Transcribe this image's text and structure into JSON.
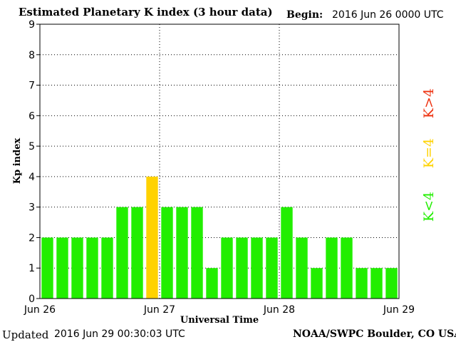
{
  "header": {
    "title": "Estimated Planetary K index (3 hour data)",
    "begin_label": "Begin:",
    "begin_value": "2016 Jun 26 0000 UTC"
  },
  "footer": {
    "updated_label": "Updated",
    "updated_value": "2016 Jun 29 00:30:03 UTC",
    "credit": "NOAA/SWPC Boulder, CO USA"
  },
  "legend": {
    "items": [
      {
        "label": "K<4",
        "color": "#22ee00"
      },
      {
        "label": "K=4",
        "color": "#ffd200"
      },
      {
        "label": "K>4",
        "color": "#ee3311"
      }
    ]
  },
  "chart_data": {
    "type": "bar",
    "xlabel": "Universal Time",
    "ylabel": "Kp index",
    "ylim": [
      0,
      9
    ],
    "yticks": [
      "0",
      "1",
      "2",
      "3",
      "4",
      "5",
      "6",
      "7",
      "8",
      "9"
    ],
    "xticks": [
      "Jun 26",
      "Jun 27",
      "Jun 28",
      "Jun 29"
    ],
    "grid": true,
    "values": [
      2,
      2,
      2,
      2,
      2,
      3,
      3,
      4,
      3,
      3,
      3,
      1,
      2,
      2,
      2,
      2,
      3,
      2,
      1,
      2,
      2,
      1,
      1,
      1
    ],
    "colors": {
      "below4": "#22ee00",
      "equal4": "#ffd200",
      "above4": "#ee3311"
    }
  }
}
